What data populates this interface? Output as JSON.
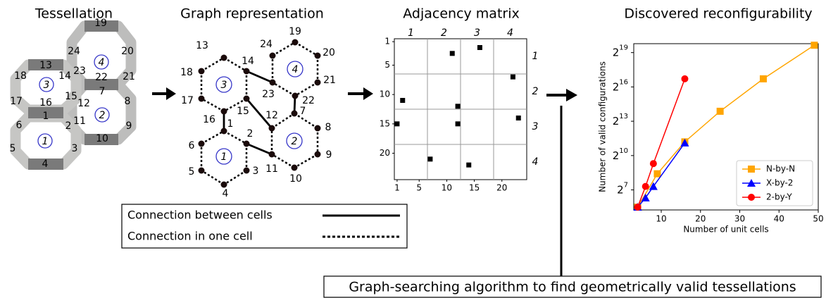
{
  "tessellation": {
    "title": "Tessellation",
    "labels": [
      "1",
      "2",
      "3",
      "4",
      "5",
      "6",
      "7",
      "8",
      "9",
      "10",
      "11",
      "12",
      "13",
      "14",
      "15",
      "16",
      "17",
      "18",
      "19",
      "20",
      "21",
      "22",
      "23",
      "24"
    ],
    "cells": [
      "1",
      "2",
      "3",
      "4"
    ]
  },
  "graph": {
    "title": "Graph representation",
    "nodes": [
      "1",
      "2",
      "3",
      "4",
      "5",
      "6",
      "7",
      "8",
      "9",
      "10",
      "11",
      "12",
      "13",
      "14",
      "15",
      "16",
      "17",
      "18",
      "19",
      "20",
      "21",
      "22",
      "23",
      "24"
    ],
    "cells": [
      "1",
      "2",
      "3",
      "4"
    ]
  },
  "legend": {
    "between": "Connection between cells",
    "within": "Connection in one cell"
  },
  "matrix": {
    "title": "Adjacency matrix",
    "xlim": [
      0.5,
      24.5
    ],
    "ylim": [
      0.5,
      24.5
    ],
    "xticks": [
      1,
      5,
      10,
      15,
      20
    ],
    "yticks": [
      1,
      5,
      10,
      15,
      20
    ],
    "block_labels": [
      "1",
      "2",
      "3",
      "4"
    ],
    "entries": [
      [
        11,
        3
      ],
      [
        16,
        2
      ],
      [
        2,
        11
      ],
      [
        22,
        7
      ],
      [
        12,
        12
      ],
      [
        23,
        14
      ],
      [
        1,
        15
      ],
      [
        12,
        15
      ],
      [
        7,
        21
      ],
      [
        14,
        22
      ]
    ]
  },
  "chart_data": {
    "type": "line",
    "title": "Discovered reconfigurability",
    "x_label": "Number of unit cells",
    "y_label": "Number of valid configurations",
    "xlim": [
      3,
      50
    ],
    "xticks": [
      10,
      20,
      30,
      40,
      50
    ],
    "ylim": [
      38,
      900000
    ],
    "log_y": true,
    "yticks": [
      {
        "value": 128,
        "label": "2",
        "exponent": "7"
      },
      {
        "value": 1024,
        "label": "2",
        "exponent": "10"
      },
      {
        "value": 8192,
        "label": "2",
        "exponent": "13"
      },
      {
        "value": 65536,
        "label": "2",
        "exponent": "16"
      },
      {
        "value": 524288,
        "label": "2",
        "exponent": "19"
      }
    ],
    "legend": "lower right",
    "series": [
      {
        "name": "N-by-N",
        "color": "#ffa500",
        "marker": "square",
        "x": [
          4,
          9,
          16,
          25,
          36,
          49
        ],
        "values": [
          45,
          340,
          2350,
          15000,
          107000,
          820000
        ]
      },
      {
        "name": "X-by-2",
        "color": "#0000ff",
        "marker": "triangle",
        "x": [
          4,
          6,
          8,
          16
        ],
        "values": [
          45,
          79,
          158,
          2200
        ]
      },
      {
        "name": "2-by-Y",
        "color": "#ff0000",
        "marker": "circle",
        "x": [
          4,
          6,
          8,
          16
        ],
        "values": [
          45,
          158,
          630,
          107000
        ]
      }
    ]
  },
  "algorithm": "Graph-searching algorithm to find geometrically valid tessellations"
}
